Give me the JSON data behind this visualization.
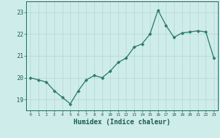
{
  "x": [
    0,
    1,
    2,
    3,
    4,
    5,
    6,
    7,
    8,
    9,
    10,
    11,
    12,
    13,
    14,
    15,
    16,
    17,
    18,
    19,
    20,
    21,
    22,
    23
  ],
  "y": [
    20.0,
    19.9,
    19.8,
    19.4,
    19.1,
    18.8,
    19.4,
    19.9,
    20.1,
    20.0,
    20.3,
    20.7,
    20.9,
    21.4,
    21.55,
    22.0,
    23.1,
    22.4,
    21.85,
    22.05,
    22.1,
    22.15,
    22.1,
    20.9
  ],
  "line_color": "#2e7d6e",
  "marker": "D",
  "markersize": 2.2,
  "linewidth": 1.0,
  "bg_color": "#ceecea",
  "grid_color": "#b8d8d5",
  "xlabel": "Humidex (Indice chaleur)",
  "xlabel_fontsize": 7,
  "tick_color": "#1a5c52",
  "ylabel_ticks": [
    19,
    20,
    21,
    22,
    23
  ],
  "xlim": [
    -0.5,
    23.5
  ],
  "ylim": [
    18.5,
    23.5
  ],
  "title": ""
}
